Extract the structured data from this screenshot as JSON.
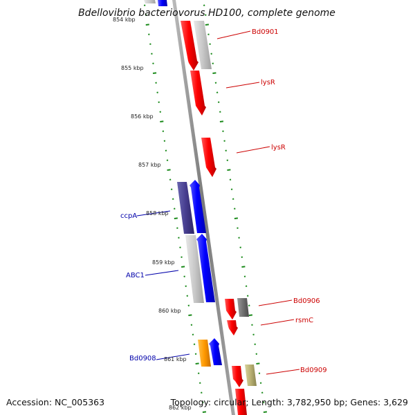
{
  "title": "Bdellovibrio bacteriovorus HD100, complete genome",
  "footer": {
    "accession": "Accession: NC_005363",
    "topology": "Topology: circular; Length: 3,782,950 bp; Genes: 3,629"
  },
  "colors": {
    "forward": "#ff0000",
    "reverse": "#0000ff",
    "forward_label": "#cc0000",
    "reverse_label": "#0000aa",
    "tick": "#1a8a1a",
    "backbone": "#8c8c8c"
  },
  "kbp_ticks": [
    "854 kbp",
    "855 kbp",
    "856 kbp",
    "857 kbp",
    "858 kbp",
    "859 kbp",
    "860 kbp",
    "861 kbp",
    "862 kbp"
  ],
  "gene_labels": [
    {
      "text": "Bd0901",
      "strand": "forward"
    },
    {
      "text": "lysR",
      "strand": "forward"
    },
    {
      "text": "lysR",
      "strand": "forward"
    },
    {
      "text": "ccpA",
      "strand": "reverse"
    },
    {
      "text": "ABC1",
      "strand": "reverse"
    },
    {
      "text": "Bd0906",
      "strand": "forward"
    },
    {
      "text": "rsmC",
      "strand": "forward"
    },
    {
      "text": "Bd0908",
      "strand": "reverse"
    },
    {
      "text": "Bd0909",
      "strand": "forward"
    }
  ]
}
